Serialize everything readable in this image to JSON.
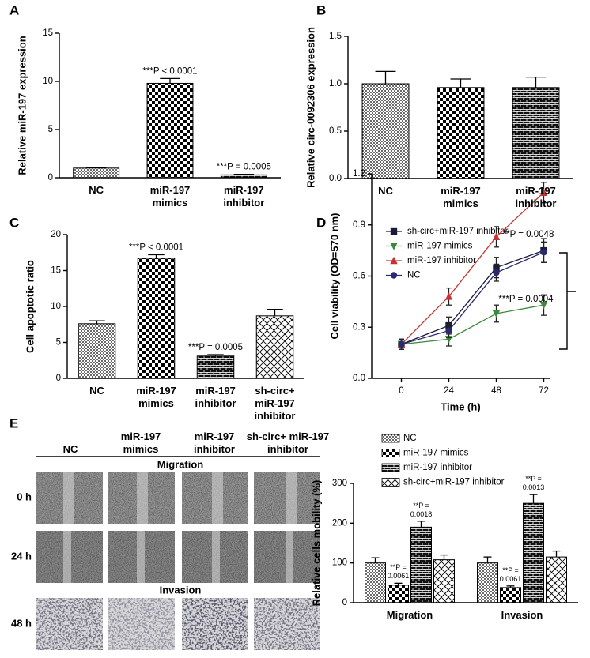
{
  "panels": [
    "A",
    "B",
    "C",
    "D",
    "E"
  ],
  "micrographs": {
    "columns": [
      "NC",
      "miR-197 mimics",
      "miR-197 inhibitor",
      "sh-circ+ miR-197 inhibitor"
    ],
    "sections": [
      "Migration",
      "Invasion"
    ],
    "rows": [
      "0 h",
      "24 h",
      "48 h"
    ]
  },
  "chart_data": [
    {
      "type": "bar",
      "ylabel": "Relative miR-197 expression",
      "categories": [
        "NC",
        "miR-197 mimics",
        "miR-197 inhibitor"
      ],
      "values": [
        1.0,
        9.8,
        0.3
      ],
      "errors": [
        0.08,
        0.5,
        0.06
      ],
      "annotations": [
        null,
        "***P < 0.0001",
        "***P = 0.0005"
      ],
      "color": "#000000",
      "ylim": [
        0,
        15
      ],
      "yticks": [
        0,
        5,
        10,
        15
      ]
    },
    {
      "type": "bar",
      "ylabel": "Relative circ-0092306 expression",
      "categories": [
        "NC",
        "miR-197 mimics",
        "miR-197 inhibitor"
      ],
      "values": [
        1.0,
        0.96,
        0.96
      ],
      "errors": [
        0.13,
        0.09,
        0.11
      ],
      "color": "#000000",
      "ylim": [
        0,
        1.5
      ],
      "yticks": [
        {
          "value": 0,
          "label": "0.0"
        },
        0.5,
        {
          "value": 1,
          "label": "1.0"
        },
        1.5
      ]
    },
    {
      "type": "bar",
      "ylabel": "Cell apoptotic ratio",
      "categories": [
        "NC",
        "miR-197 mimics",
        "miR-197 inhibitor",
        "sh-circ+ miR-197 inhibitor"
      ],
      "values": [
        7.6,
        16.7,
        3.1,
        8.7
      ],
      "errors": [
        0.4,
        0.5,
        0.2,
        0.9
      ],
      "annotations": [
        null,
        "***P < 0.0001",
        "***P = 0.0005",
        null
      ],
      "color": "#000000",
      "ylim": [
        0,
        20
      ],
      "yticks": [
        0,
        5,
        10,
        15,
        20
      ]
    },
    {
      "type": "line",
      "xlabel": "Time (h)",
      "ylabel": "Cell viability (OD=570 nm)",
      "x": [
        0,
        24,
        48,
        72
      ],
      "xlim": [
        -15,
        75
      ],
      "xticks": [
        0,
        24,
        48,
        72
      ],
      "ylim": [
        0,
        1.2
      ],
      "yticks": [
        {
          "value": 0,
          "label": "0.0"
        },
        0.3,
        0.6,
        0.9,
        1.2
      ],
      "legend": "upper left",
      "series": [
        {
          "name": "sh-circ+miR-197 inhibitor",
          "color": "#1a1a3a",
          "marker": "square",
          "values": [
            0.2,
            0.31,
            0.65,
            0.75
          ],
          "errors": [
            0.03,
            0.05,
            0.06,
            0.07
          ]
        },
        {
          "name": "miR-197 mimics",
          "color": "#3a8a3a",
          "marker": "triangle-down",
          "values": [
            0.2,
            0.23,
            0.38,
            0.43
          ],
          "errors": [
            0.03,
            0.04,
            0.05,
            0.06
          ]
        },
        {
          "name": "miR-197 inhibitor",
          "color": "#c83232",
          "marker": "triangle",
          "values": [
            0.2,
            0.48,
            0.83,
            1.09
          ],
          "errors": [
            0.03,
            0.05,
            0.06,
            0.06
          ]
        },
        {
          "name": "NC",
          "color": "#2a2a70",
          "marker": "circle",
          "values": [
            0.2,
            0.28,
            0.62,
            0.74
          ],
          "errors": [
            0.03,
            0.04,
            0.05,
            0.06
          ]
        }
      ],
      "annotations": [
        "**P = 0.0048",
        "***P = 0.0004"
      ]
    },
    {
      "type": "bar",
      "ylabel": "Relative cells mobility (%)",
      "categories": [
        "Migration",
        "Invasion"
      ],
      "ylim": [
        0,
        300
      ],
      "yticks": [
        0,
        100,
        200,
        300
      ],
      "legend": "top",
      "series": [
        {
          "name": "NC",
          "color": "#000000",
          "values": [
            100,
            100
          ],
          "errors": [
            13,
            15
          ]
        },
        {
          "name": "miR-197 mimics",
          "color": "#000000",
          "values": [
            44,
            38
          ],
          "errors": [
            5,
            4
          ],
          "annotations": [
            "**P = 0.0061",
            "**P = 0.0061"
          ]
        },
        {
          "name": "miR-197 inhibitor",
          "color": "#000000",
          "values": [
            190,
            250
          ],
          "errors": [
            15,
            22
          ],
          "annotations": [
            "**P = 0.0018",
            "**P = 0.0013"
          ]
        },
        {
          "name": "sh-circ+miR-197 inhibitor",
          "color": "#000000",
          "values": [
            108,
            115
          ],
          "errors": [
            12,
            15
          ]
        }
      ]
    }
  ]
}
